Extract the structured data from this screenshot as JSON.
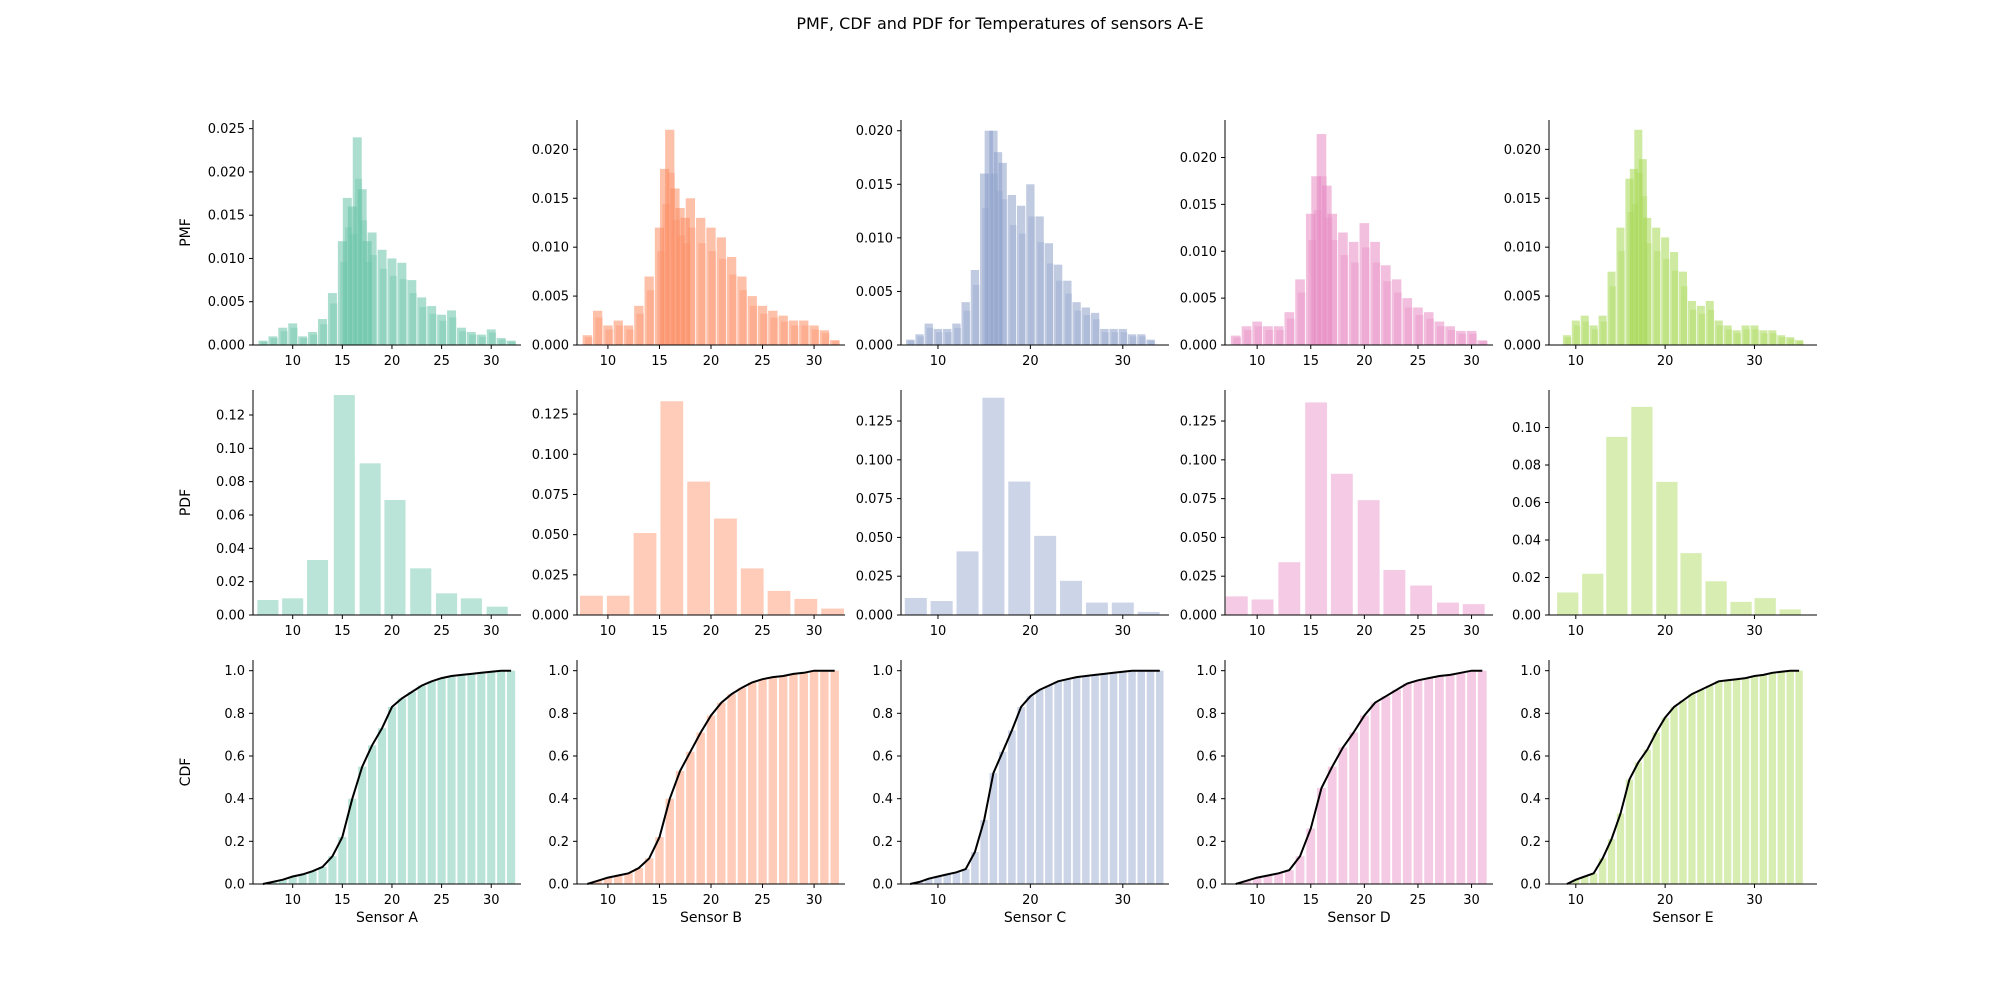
{
  "figure": {
    "title": "PMF, CDF and PDF for Temperatures of sensors A-E"
  },
  "chart_data": {
    "type": "bar",
    "rows": [
      "PMF",
      "PDF",
      "CDF"
    ],
    "row_ylabels": [
      "PMF",
      "PDF",
      "CDF"
    ],
    "sensors": [
      {
        "name": "Sensor A",
        "color": "#66c2a5",
        "xlim": [
          6,
          33
        ],
        "xticks": [
          10,
          15,
          20,
          25,
          30
        ],
        "pmf": {
          "ylim": [
            0,
            0.026
          ],
          "yticks": [
            "0.000",
            "0.005",
            "0.010",
            "0.015",
            "0.020",
            "0.025"
          ],
          "ytick_values": [
            0,
            0.005,
            0.01,
            0.015,
            0.02,
            0.025
          ],
          "x": [
            7,
            8,
            9,
            10,
            11,
            12,
            13,
            14,
            15,
            15.5,
            16,
            16.5,
            17,
            17.5,
            18,
            19,
            20,
            21,
            22,
            23,
            24,
            25,
            26,
            27,
            28,
            29,
            30,
            31,
            32
          ],
          "values": [
            0.0005,
            0.001,
            0.002,
            0.0025,
            0.001,
            0.0015,
            0.003,
            0.006,
            0.012,
            0.017,
            0.016,
            0.024,
            0.018,
            0.012,
            0.013,
            0.011,
            0.01,
            0.0095,
            0.0075,
            0.0055,
            0.0045,
            0.0035,
            0.004,
            0.002,
            0.0015,
            0.0012,
            0.0018,
            0.0008,
            0.0005
          ]
        },
        "pdf": {
          "ylim": [
            0,
            0.135
          ],
          "yticks": [
            "0.00",
            "0.02",
            "0.04",
            "0.06",
            "0.08",
            "0.10",
            "0.12"
          ],
          "ytick_values": [
            0,
            0.02,
            0.04,
            0.06,
            0.08,
            0.1,
            0.12
          ],
          "x": [
            7.5,
            10,
            12.5,
            15.2,
            17.8,
            20.3,
            22.9,
            25.5,
            28,
            30.6
          ],
          "values": [
            0.009,
            0.01,
            0.033,
            0.132,
            0.091,
            0.069,
            0.028,
            0.013,
            0.01,
            0.005
          ]
        },
        "cdf": {
          "ylim": [
            0,
            1.05
          ],
          "yticks": [
            "0.0",
            "0.2",
            "0.4",
            "0.6",
            "0.8",
            "1.0"
          ],
          "ytick_values": [
            0,
            0.2,
            0.4,
            0.6,
            0.8,
            1.0
          ],
          "x": [
            7,
            8,
            9,
            10,
            11,
            12,
            13,
            14,
            15,
            16,
            17,
            18,
            19,
            20,
            21,
            22,
            23,
            24,
            25,
            26,
            27,
            28,
            29,
            30,
            31,
            32
          ],
          "values": [
            0.0,
            0.01,
            0.02,
            0.035,
            0.045,
            0.06,
            0.08,
            0.13,
            0.22,
            0.4,
            0.55,
            0.65,
            0.73,
            0.83,
            0.87,
            0.9,
            0.93,
            0.95,
            0.965,
            0.975,
            0.98,
            0.985,
            0.99,
            0.995,
            1.0,
            1.0
          ]
        }
      },
      {
        "name": "Sensor B",
        "color": "#fc8d62",
        "xlim": [
          7,
          33
        ],
        "xticks": [
          10,
          15,
          20,
          25,
          30
        ],
        "pmf": {
          "ylim": [
            0,
            0.023
          ],
          "yticks": [
            "0.000",
            "0.005",
            "0.010",
            "0.015",
            "0.020"
          ],
          "ytick_values": [
            0,
            0.005,
            0.01,
            0.015,
            0.02
          ],
          "x": [
            8,
            9,
            10,
            11,
            12,
            13,
            14,
            15,
            15.5,
            16,
            16.5,
            17,
            17.5,
            18,
            19,
            20,
            21,
            22,
            23,
            24,
            25,
            26,
            27,
            28,
            29,
            30,
            31,
            32
          ],
          "values": [
            0.001,
            0.0035,
            0.002,
            0.0025,
            0.002,
            0.004,
            0.007,
            0.012,
            0.018,
            0.022,
            0.016,
            0.014,
            0.013,
            0.015,
            0.013,
            0.012,
            0.011,
            0.009,
            0.007,
            0.005,
            0.004,
            0.0035,
            0.003,
            0.0025,
            0.0025,
            0.002,
            0.0015,
            0.0005
          ]
        },
        "pdf": {
          "ylim": [
            0,
            0.14
          ],
          "yticks": [
            "0.000",
            "0.025",
            "0.050",
            "0.075",
            "0.100",
            "0.125"
          ],
          "ytick_values": [
            0,
            0.025,
            0.05,
            0.075,
            0.1,
            0.125
          ],
          "x": [
            8.4,
            11,
            13.6,
            16.2,
            18.8,
            21.4,
            24,
            26.6,
            29.2,
            31.8
          ],
          "values": [
            0.012,
            0.012,
            0.051,
            0.133,
            0.083,
            0.06,
            0.029,
            0.015,
            0.01,
            0.004
          ]
        },
        "cdf": {
          "ylim": [
            0,
            1.05
          ],
          "yticks": [
            "0.0",
            "0.2",
            "0.4",
            "0.6",
            "0.8",
            "1.0"
          ],
          "ytick_values": [
            0,
            0.2,
            0.4,
            0.6,
            0.8,
            1.0
          ],
          "x": [
            8,
            9,
            10,
            11,
            12,
            13,
            14,
            15,
            16,
            17,
            18,
            19,
            20,
            21,
            22,
            23,
            24,
            25,
            26,
            27,
            28,
            29,
            30,
            31,
            32
          ],
          "values": [
            0.0,
            0.015,
            0.03,
            0.04,
            0.05,
            0.075,
            0.12,
            0.22,
            0.4,
            0.53,
            0.62,
            0.71,
            0.79,
            0.85,
            0.89,
            0.92,
            0.945,
            0.96,
            0.97,
            0.975,
            0.985,
            0.99,
            1.0,
            1.0,
            1.0
          ]
        }
      },
      {
        "name": "Sensor C",
        "color": "#8da0cb",
        "xlim": [
          6,
          35
        ],
        "xticks": [
          10,
          20,
          30
        ],
        "pmf": {
          "ylim": [
            0,
            0.021
          ],
          "yticks": [
            "0.000",
            "0.005",
            "0.010",
            "0.015",
            "0.020"
          ],
          "ytick_values": [
            0,
            0.005,
            0.01,
            0.015,
            0.02
          ],
          "x": [
            7,
            8,
            9,
            10,
            11,
            12,
            13,
            14,
            15,
            15.5,
            16,
            16.5,
            17,
            18,
            19,
            20,
            21,
            22,
            23,
            24,
            25,
            26,
            27,
            28,
            29,
            30,
            31,
            32,
            33
          ],
          "values": [
            0.0005,
            0.001,
            0.002,
            0.0015,
            0.0015,
            0.002,
            0.004,
            0.007,
            0.016,
            0.02,
            0.02,
            0.018,
            0.017,
            0.014,
            0.013,
            0.015,
            0.012,
            0.0095,
            0.0075,
            0.006,
            0.004,
            0.0035,
            0.003,
            0.0015,
            0.0015,
            0.0015,
            0.001,
            0.001,
            0.0005
          ]
        },
        "pdf": {
          "ylim": [
            0,
            0.145
          ],
          "yticks": [
            "0.000",
            "0.025",
            "0.050",
            "0.075",
            "0.100",
            "0.125"
          ],
          "ytick_values": [
            0,
            0.025,
            0.05,
            0.075,
            0.1,
            0.125
          ],
          "x": [
            7.6,
            10.4,
            13.2,
            16,
            18.8,
            21.6,
            24.4,
            27.2,
            30,
            32.8
          ],
          "values": [
            0.011,
            0.009,
            0.041,
            0.14,
            0.086,
            0.051,
            0.022,
            0.008,
            0.008,
            0.002
          ]
        },
        "cdf": {
          "ylim": [
            0,
            1.05
          ],
          "yticks": [
            "0.0",
            "0.2",
            "0.4",
            "0.6",
            "0.8",
            "1.0"
          ],
          "ytick_values": [
            0,
            0.2,
            0.4,
            0.6,
            0.8,
            1.0
          ],
          "x": [
            7,
            8,
            9,
            10,
            11,
            12,
            13,
            14,
            15,
            16,
            17,
            18,
            19,
            20,
            21,
            22,
            23,
            24,
            25,
            26,
            27,
            28,
            29,
            30,
            31,
            32,
            33,
            34
          ],
          "values": [
            0.0,
            0.01,
            0.025,
            0.035,
            0.045,
            0.055,
            0.07,
            0.15,
            0.3,
            0.52,
            0.62,
            0.72,
            0.83,
            0.88,
            0.91,
            0.93,
            0.95,
            0.96,
            0.97,
            0.975,
            0.98,
            0.985,
            0.99,
            0.995,
            1.0,
            1.0,
            1.0,
            1.0
          ]
        }
      },
      {
        "name": "Sensor D",
        "color": "#e78ac3",
        "xlim": [
          7,
          32
        ],
        "xticks": [
          10,
          15,
          20,
          25,
          30
        ],
        "pmf": {
          "ylim": [
            0,
            0.024
          ],
          "yticks": [
            "0.000",
            "0.005",
            "0.010",
            "0.015",
            "0.020"
          ],
          "ytick_values": [
            0,
            0.005,
            0.01,
            0.015,
            0.02
          ],
          "x": [
            8,
            9,
            10,
            11,
            12,
            13,
            14,
            15,
            15.5,
            16,
            16.5,
            17,
            18,
            19,
            20,
            21,
            22,
            23,
            24,
            25,
            26,
            27,
            28,
            29,
            30,
            31
          ],
          "values": [
            0.001,
            0.002,
            0.0025,
            0.002,
            0.002,
            0.0035,
            0.007,
            0.014,
            0.018,
            0.0225,
            0.017,
            0.014,
            0.012,
            0.011,
            0.013,
            0.011,
            0.0085,
            0.007,
            0.005,
            0.004,
            0.0035,
            0.0025,
            0.002,
            0.0015,
            0.0015,
            0.0005
          ]
        },
        "pdf": {
          "ylim": [
            0,
            0.145
          ],
          "yticks": [
            "0.000",
            "0.025",
            "0.050",
            "0.075",
            "0.100",
            "0.125"
          ],
          "ytick_values": [
            0,
            0.025,
            0.05,
            0.075,
            0.1,
            0.125
          ],
          "x": [
            8.1,
            10.5,
            13,
            15.5,
            17.9,
            20.4,
            22.8,
            25.3,
            27.8,
            30.2
          ],
          "values": [
            0.012,
            0.01,
            0.034,
            0.137,
            0.091,
            0.074,
            0.029,
            0.019,
            0.008,
            0.007
          ]
        },
        "cdf": {
          "ylim": [
            0,
            1.05
          ],
          "yticks": [
            "0.0",
            "0.2",
            "0.4",
            "0.6",
            "0.8",
            "1.0"
          ],
          "ytick_values": [
            0,
            0.2,
            0.4,
            0.6,
            0.8,
            1.0
          ],
          "x": [
            8,
            9,
            10,
            11,
            12,
            13,
            14,
            15,
            16,
            17,
            18,
            19,
            20,
            21,
            22,
            23,
            24,
            25,
            26,
            27,
            28,
            29,
            30,
            31
          ],
          "values": [
            0.0,
            0.015,
            0.03,
            0.04,
            0.05,
            0.065,
            0.13,
            0.26,
            0.45,
            0.55,
            0.64,
            0.71,
            0.79,
            0.85,
            0.88,
            0.91,
            0.94,
            0.955,
            0.965,
            0.975,
            0.98,
            0.99,
            1.0,
            1.0
          ]
        }
      },
      {
        "name": "Sensor E",
        "color": "#a6d854",
        "xlim": [
          7,
          37
        ],
        "xticks": [
          10,
          20,
          30
        ],
        "pmf": {
          "ylim": [
            0,
            0.023
          ],
          "yticks": [
            "0.000",
            "0.005",
            "0.010",
            "0.015",
            "0.020"
          ],
          "ytick_values": [
            0,
            0.005,
            0.01,
            0.015,
            0.02
          ],
          "x": [
            9,
            10,
            11,
            12,
            13,
            14,
            15,
            16,
            16.5,
            17,
            17.5,
            18,
            19,
            20,
            21,
            22,
            23,
            24,
            25,
            26,
            27,
            28,
            29,
            30,
            31,
            32,
            33,
            34,
            35
          ],
          "values": [
            0.001,
            0.0025,
            0.003,
            0.002,
            0.003,
            0.0075,
            0.012,
            0.017,
            0.018,
            0.022,
            0.019,
            0.013,
            0.012,
            0.011,
            0.0095,
            0.0075,
            0.0045,
            0.004,
            0.0045,
            0.0025,
            0.002,
            0.0015,
            0.002,
            0.002,
            0.0015,
            0.0015,
            0.001,
            0.0008,
            0.0005
          ]
        },
        "pdf": {
          "ylim": [
            0,
            0.12
          ],
          "yticks": [
            "0.00",
            "0.02",
            "0.04",
            "0.06",
            "0.08",
            "0.10"
          ],
          "ytick_values": [
            0,
            0.02,
            0.04,
            0.06,
            0.08,
            0.1
          ],
          "x": [
            9.1,
            11.9,
            14.6,
            17.4,
            20.2,
            22.9,
            25.7,
            28.5,
            31.2,
            34
          ],
          "values": [
            0.012,
            0.022,
            0.095,
            0.111,
            0.071,
            0.033,
            0.018,
            0.007,
            0.009,
            0.003
          ]
        },
        "cdf": {
          "ylim": [
            0,
            1.05
          ],
          "yticks": [
            "0.0",
            "0.2",
            "0.4",
            "0.6",
            "0.8",
            "1.0"
          ],
          "ytick_values": [
            0,
            0.2,
            0.4,
            0.6,
            0.8,
            1.0
          ],
          "x": [
            9,
            10,
            11,
            12,
            13,
            14,
            15,
            16,
            17,
            18,
            19,
            20,
            21,
            22,
            23,
            24,
            25,
            26,
            27,
            28,
            29,
            30,
            31,
            32,
            33,
            34,
            35
          ],
          "values": [
            0.0,
            0.02,
            0.035,
            0.05,
            0.12,
            0.21,
            0.33,
            0.49,
            0.57,
            0.63,
            0.71,
            0.78,
            0.83,
            0.86,
            0.89,
            0.91,
            0.93,
            0.95,
            0.955,
            0.96,
            0.965,
            0.975,
            0.98,
            0.99,
            0.995,
            1.0,
            1.0
          ]
        }
      }
    ]
  }
}
